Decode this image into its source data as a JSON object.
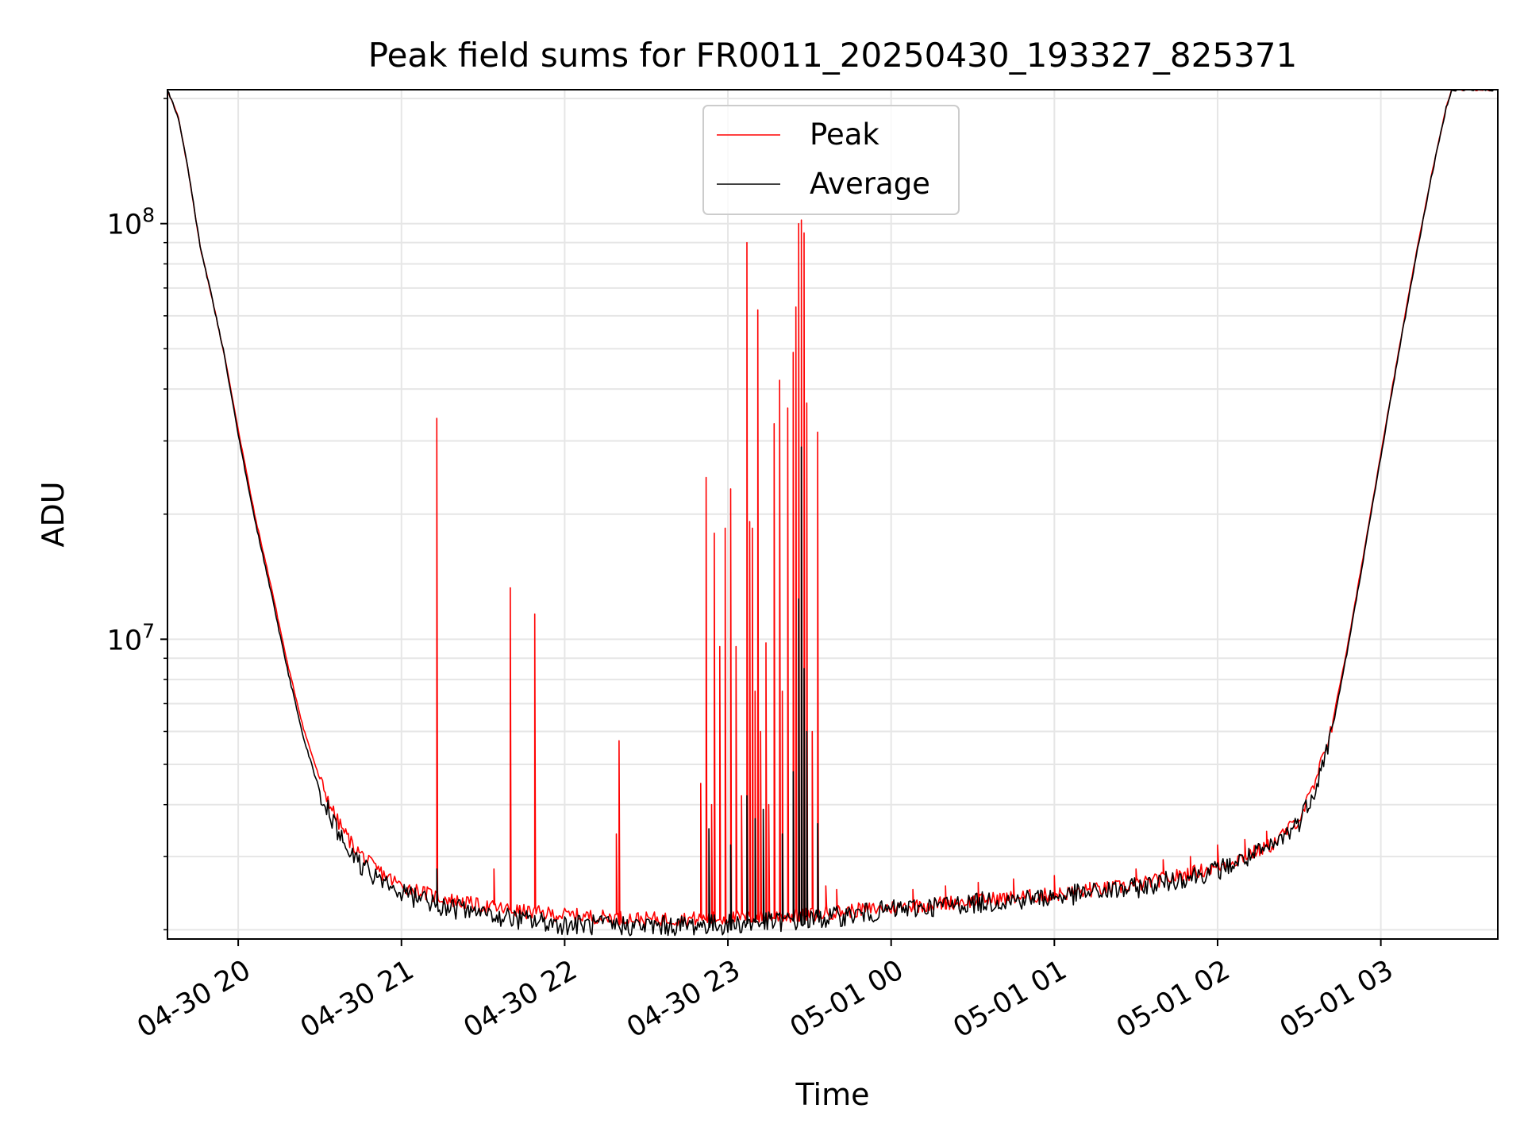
{
  "chart_data": {
    "type": "line",
    "title": "Peak field sums for FR0011_20250430_193327_825371",
    "xlabel": "Time",
    "ylabel": "ADU",
    "y_scale": "log",
    "grid": true,
    "legend_placement": "top-center",
    "x_range": [
      "2025-04-30 19:34",
      "2025-05-01 03:43"
    ],
    "y_range": [
      1900000,
      210000000
    ],
    "x_ticks": [
      {
        "t": "2025-04-30 20:00",
        "label": "04-30 20"
      },
      {
        "t": "2025-04-30 21:00",
        "label": "04-30 21"
      },
      {
        "t": "2025-04-30 22:00",
        "label": "04-30 22"
      },
      {
        "t": "2025-04-30 23:00",
        "label": "04-30 23"
      },
      {
        "t": "2025-05-01 00:00",
        "label": "05-01 00"
      },
      {
        "t": "2025-05-01 01:00",
        "label": "05-01 01"
      },
      {
        "t": "2025-05-01 02:00",
        "label": "05-01 02"
      },
      {
        "t": "2025-05-01 03:00",
        "label": "05-01 03"
      }
    ],
    "y_major_ticks": [
      {
        "value": 10000000,
        "base": "10",
        "exp": "7"
      },
      {
        "value": 100000000,
        "base": "10",
        "exp": "8"
      }
    ],
    "y_minor_ticks": [
      2000000,
      3000000,
      4000000,
      5000000,
      6000000,
      7000000,
      8000000,
      9000000,
      20000000,
      30000000,
      40000000,
      50000000,
      60000000,
      70000000,
      80000000,
      90000000,
      200000000
    ],
    "series": [
      {
        "name": "Peak",
        "color": "#ff0000",
        "baseline": [
          [
            "2025-04-30 19:34",
            210000000
          ],
          [
            "2025-04-30 19:38",
            180000000
          ],
          [
            "2025-04-30 19:42",
            130000000
          ],
          [
            "2025-04-30 19:46",
            88000000
          ],
          [
            "2025-04-30 19:50",
            68000000
          ],
          [
            "2025-04-30 19:55",
            48000000
          ],
          [
            "2025-04-30 20:00",
            32000000
          ],
          [
            "2025-04-30 20:06",
            20000000
          ],
          [
            "2025-04-30 20:12",
            13500000
          ],
          [
            "2025-04-30 20:18",
            8800000
          ],
          [
            "2025-04-30 20:24",
            6100000
          ],
          [
            "2025-04-30 20:30",
            4600000
          ],
          [
            "2025-04-30 20:36",
            3700000
          ],
          [
            "2025-04-30 20:42",
            3200000
          ],
          [
            "2025-04-30 20:48",
            2900000
          ],
          [
            "2025-04-30 20:54",
            2700000
          ],
          [
            "2025-04-30 21:00",
            2550000
          ],
          [
            "2025-04-30 21:15",
            2380000
          ],
          [
            "2025-04-30 21:30",
            2280000
          ],
          [
            "2025-04-30 21:45",
            2210000
          ],
          [
            "2025-04-30 22:00",
            2170000
          ],
          [
            "2025-04-30 22:30",
            2120000
          ],
          [
            "2025-04-30 23:00",
            2130000
          ],
          [
            "2025-04-30 23:30",
            2170000
          ],
          [
            "2025-04-30 23:40",
            2210000
          ],
          [
            "2025-05-01 00:00",
            2260000
          ],
          [
            "2025-05-01 00:30",
            2350000
          ],
          [
            "2025-05-01 01:00",
            2430000
          ],
          [
            "2025-05-01 01:30",
            2560000
          ],
          [
            "2025-05-01 02:00",
            2830000
          ],
          [
            "2025-05-01 02:20",
            3200000
          ],
          [
            "2025-05-01 02:30",
            3700000
          ],
          [
            "2025-05-01 02:36",
            4500000
          ],
          [
            "2025-05-01 02:42",
            6200000
          ],
          [
            "2025-05-01 02:48",
            9800000
          ],
          [
            "2025-05-01 02:54",
            16500000
          ],
          [
            "2025-05-01 03:00",
            28000000
          ],
          [
            "2025-05-01 03:06",
            47000000
          ],
          [
            "2025-05-01 03:12",
            78000000
          ],
          [
            "2025-05-01 03:18",
            125000000
          ],
          [
            "2025-05-01 03:24",
            190000000
          ],
          [
            "2025-05-01 03:26",
            210000000
          ],
          [
            "2025-05-01 03:43",
            210000000
          ]
        ],
        "spikes": [
          [
            "2025-04-30 21:13",
            34000000
          ],
          [
            "2025-04-30 21:40",
            13300000
          ],
          [
            "2025-04-30 21:49",
            11500000
          ],
          [
            "2025-04-30 21:34",
            2800000
          ],
          [
            "2025-04-30 22:20",
            5700000
          ],
          [
            "2025-04-30 22:19",
            3400000
          ],
          [
            "2025-04-30 22:50",
            4500000
          ],
          [
            "2025-04-30 22:52",
            24500000
          ],
          [
            "2025-04-30 22:54",
            4000000
          ],
          [
            "2025-04-30 22:55",
            18000000
          ],
          [
            "2025-04-30 22:57",
            9600000
          ],
          [
            "2025-04-30 22:59",
            18500000
          ],
          [
            "2025-04-30 23:01",
            23000000
          ],
          [
            "2025-04-30 23:03",
            9600000
          ],
          [
            "2025-04-30 23:05",
            4200000
          ],
          [
            "2025-04-30 23:07",
            90000000
          ],
          [
            "2025-04-30 23:08",
            19200000
          ],
          [
            "2025-04-30 23:09",
            18500000
          ],
          [
            "2025-04-30 23:10",
            7500000
          ],
          [
            "2025-04-30 23:11",
            62000000
          ],
          [
            "2025-04-30 23:12",
            6000000
          ],
          [
            "2025-04-30 23:14",
            9800000
          ],
          [
            "2025-04-30 23:15",
            4000000
          ],
          [
            "2025-04-30 23:17",
            33000000
          ],
          [
            "2025-04-30 23:19",
            42000000
          ],
          [
            "2025-04-30 23:20",
            7500000
          ],
          [
            "2025-04-30 23:22",
            36000000
          ],
          [
            "2025-04-30 23:24",
            49000000
          ],
          [
            "2025-04-30 23:25",
            63000000
          ],
          [
            "2025-04-30 23:26",
            100000000
          ],
          [
            "2025-04-30 23:27",
            102000000
          ],
          [
            "2025-04-30 23:28",
            95000000
          ],
          [
            "2025-04-30 23:29",
            37000000
          ],
          [
            "2025-04-30 23:31",
            6000000
          ],
          [
            "2025-04-30 23:33",
            31500000
          ],
          [
            "2025-04-30 23:36",
            2550000
          ],
          [
            "2025-04-30 23:40",
            2500000
          ],
          [
            "2025-05-01 00:08",
            2500000
          ],
          [
            "2025-05-01 00:20",
            2550000
          ],
          [
            "2025-05-01 00:32",
            2600000
          ],
          [
            "2025-05-01 00:45",
            2650000
          ],
          [
            "2025-05-01 01:00",
            2700000
          ],
          [
            "2025-05-01 01:13",
            2600000
          ],
          [
            "2025-05-01 01:30",
            2800000
          ],
          [
            "2025-05-01 01:40",
            2950000
          ],
          [
            "2025-05-01 01:50",
            3000000
          ],
          [
            "2025-05-01 02:00",
            3200000
          ],
          [
            "2025-05-01 02:10",
            3300000
          ],
          [
            "2025-05-01 02:18",
            3450000
          ],
          [
            "2025-05-01 02:25",
            3500000
          ]
        ]
      },
      {
        "name": "Average",
        "color": "#000000",
        "baseline": [
          [
            "2025-04-30 19:34",
            210000000
          ],
          [
            "2025-04-30 19:38",
            180000000
          ],
          [
            "2025-04-30 19:42",
            130000000
          ],
          [
            "2025-04-30 19:46",
            88000000
          ],
          [
            "2025-04-30 19:50",
            68000000
          ],
          [
            "2025-04-30 19:55",
            48000000
          ],
          [
            "2025-04-30 20:00",
            31000000
          ],
          [
            "2025-04-30 20:06",
            19500000
          ],
          [
            "2025-04-30 20:12",
            13000000
          ],
          [
            "2025-04-30 20:18",
            8500000
          ],
          [
            "2025-04-30 20:24",
            5800000
          ],
          [
            "2025-04-30 20:30",
            4300000
          ],
          [
            "2025-04-30 20:36",
            3500000
          ],
          [
            "2025-04-30 20:42",
            3000000
          ],
          [
            "2025-04-30 20:48",
            2750000
          ],
          [
            "2025-04-30 20:54",
            2580000
          ],
          [
            "2025-04-30 21:00",
            2450000
          ],
          [
            "2025-04-30 21:15",
            2280000
          ],
          [
            "2025-04-30 21:30",
            2180000
          ],
          [
            "2025-04-30 21:45",
            2110000
          ],
          [
            "2025-04-30 22:00",
            2060000
          ],
          [
            "2025-04-30 22:30",
            2040000
          ],
          [
            "2025-04-30 23:00",
            2060000
          ],
          [
            "2025-04-30 23:30",
            2110000
          ],
          [
            "2025-04-30 23:40",
            2150000
          ],
          [
            "2025-05-01 00:00",
            2230000
          ],
          [
            "2025-05-01 00:30",
            2320000
          ],
          [
            "2025-05-01 01:00",
            2400000
          ],
          [
            "2025-05-01 01:30",
            2520000
          ],
          [
            "2025-05-01 02:00",
            2780000
          ],
          [
            "2025-05-01 02:20",
            3150000
          ],
          [
            "2025-05-01 02:30",
            3650000
          ],
          [
            "2025-05-01 02:36",
            4400000
          ],
          [
            "2025-05-01 02:42",
            6000000
          ],
          [
            "2025-05-01 02:48",
            9600000
          ],
          [
            "2025-05-01 02:54",
            16200000
          ],
          [
            "2025-05-01 03:00",
            27500000
          ],
          [
            "2025-05-01 03:06",
            46500000
          ],
          [
            "2025-05-01 03:12",
            77000000
          ],
          [
            "2025-05-01 03:18",
            124000000
          ],
          [
            "2025-05-01 03:24",
            190000000
          ],
          [
            "2025-05-01 03:26",
            210000000
          ],
          [
            "2025-05-01 03:43",
            210000000
          ]
        ],
        "spikes": [
          [
            "2025-04-30 21:13",
            2800000
          ],
          [
            "2025-04-30 22:53",
            3500000
          ],
          [
            "2025-04-30 23:01",
            3200000
          ],
          [
            "2025-04-30 23:07",
            4200000
          ],
          [
            "2025-04-30 23:10",
            3700000
          ],
          [
            "2025-04-30 23:13",
            3900000
          ],
          [
            "2025-04-30 23:20",
            3400000
          ],
          [
            "2025-04-30 23:24",
            4800000
          ],
          [
            "2025-04-30 23:26",
            12500000
          ],
          [
            "2025-04-30 23:27",
            29000000
          ],
          [
            "2025-04-30 23:28",
            8500000
          ],
          [
            "2025-04-30 23:29",
            6000000
          ],
          [
            "2025-04-30 23:33",
            3600000
          ]
        ]
      }
    ]
  }
}
